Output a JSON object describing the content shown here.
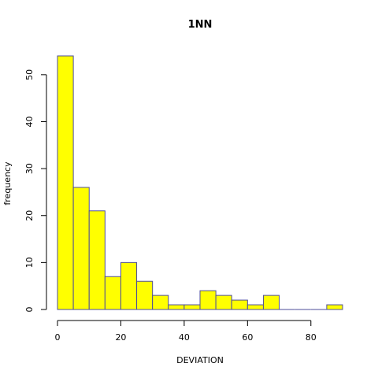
{
  "chart_data": {
    "type": "bar",
    "title": "1NN",
    "xlabel": "DEVIATION",
    "ylabel": "frequency",
    "bin_edges": [
      0,
      5,
      10,
      15,
      20,
      25,
      30,
      35,
      40,
      45,
      50,
      55,
      60,
      65,
      70,
      75,
      80,
      85,
      90
    ],
    "values": [
      54,
      26,
      21,
      7,
      10,
      6,
      3,
      1,
      1,
      4,
      3,
      2,
      1,
      3,
      0,
      0,
      0,
      1
    ],
    "xlim": [
      0,
      90
    ],
    "ylim": [
      0,
      55
    ],
    "xticks": [
      0,
      20,
      40,
      60,
      80
    ],
    "yticks": [
      0,
      10,
      20,
      30,
      40,
      50
    ],
    "bar_color": "#ffff00",
    "edge_color": "#4d4d9a",
    "grid": false
  }
}
